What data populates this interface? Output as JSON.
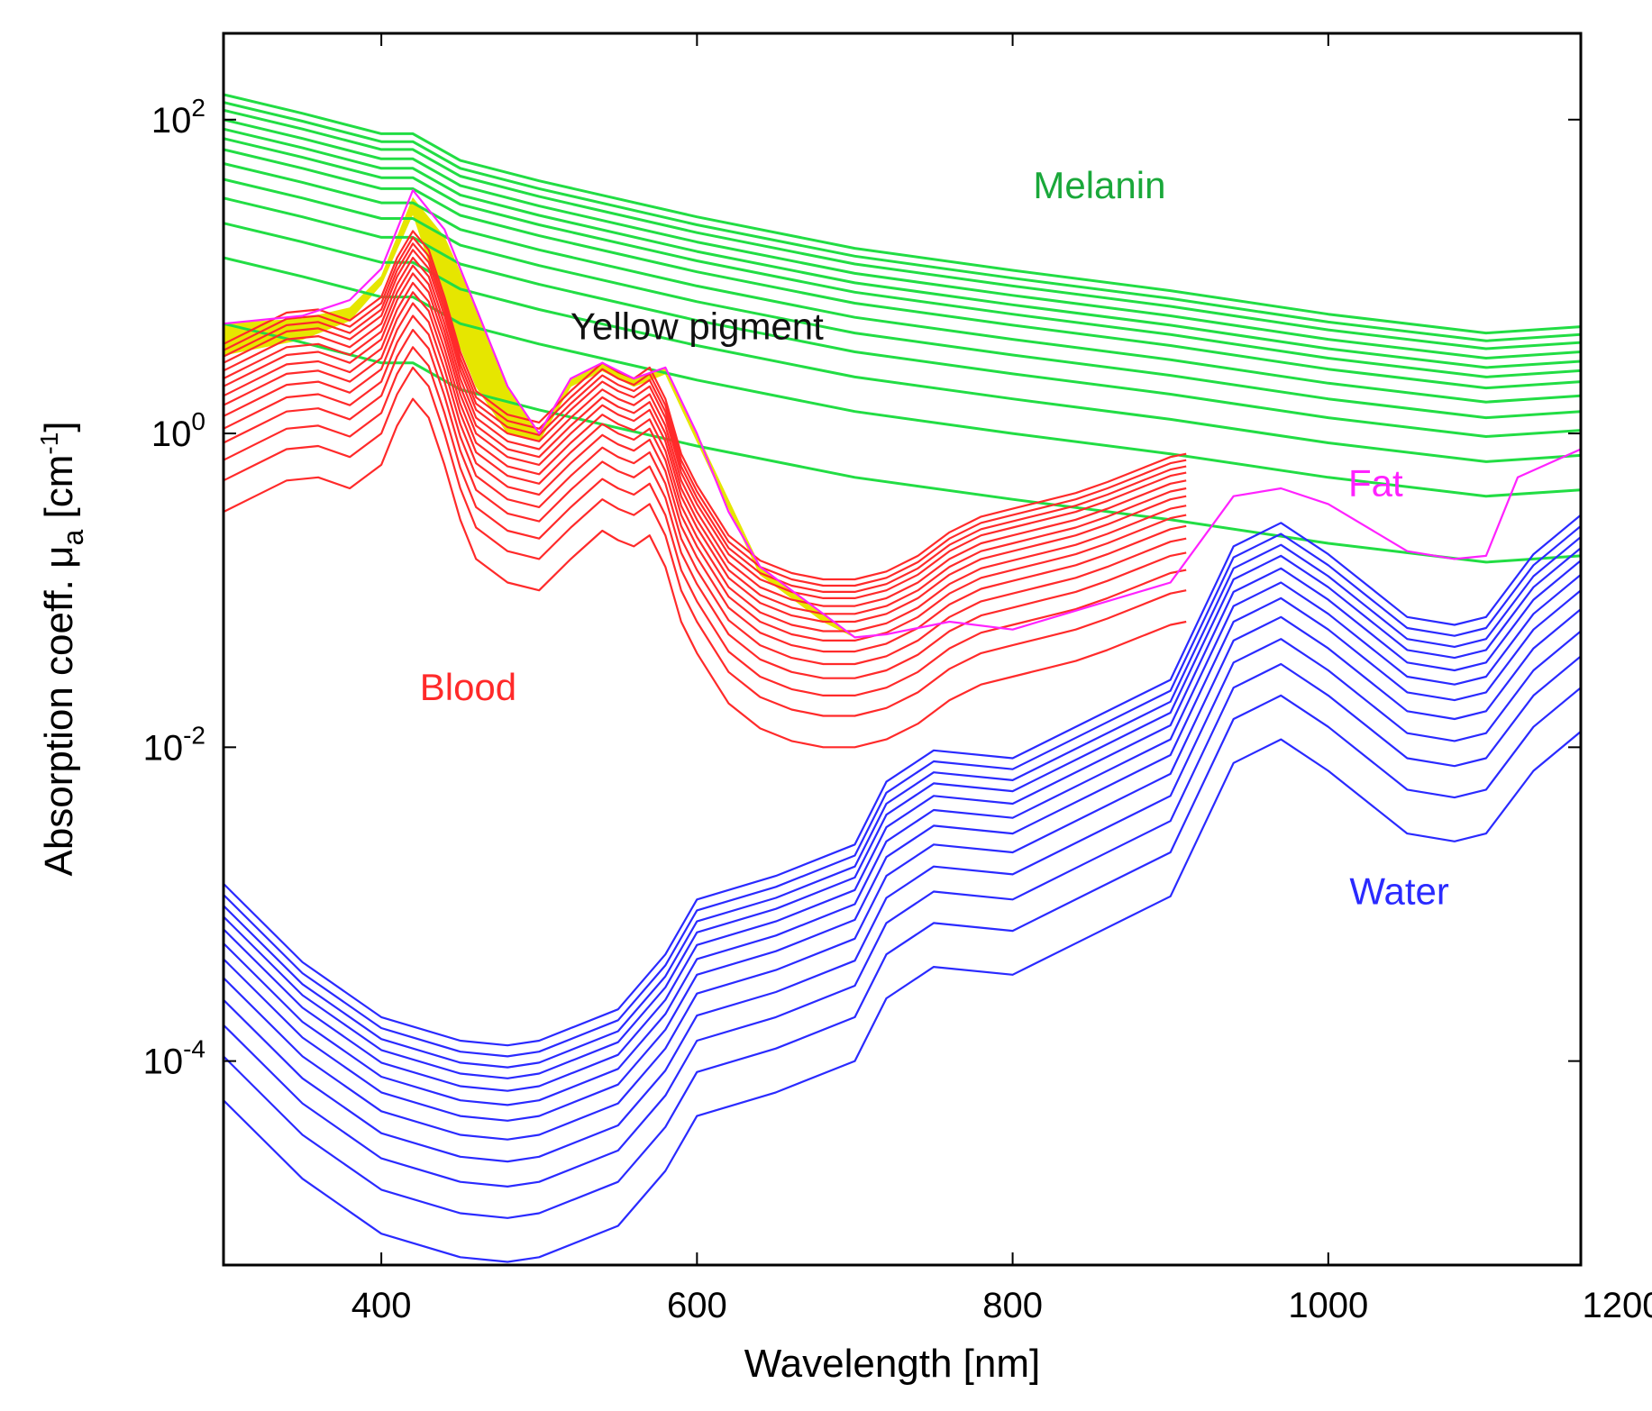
{
  "chart_data": {
    "type": "line",
    "title": "",
    "xlabel": "Wavelength [nm]",
    "ylabel": {
      "prefix": "Absorption coeff. μ",
      "subscript": "a",
      "unit_open": " [cm",
      "unit_sup": "-1",
      "unit_close": "]"
    },
    "xlim": [
      300,
      1160
    ],
    "ylim_log10": [
      -5.3,
      2.55
    ],
    "yscale": "log",
    "x_ticks": [
      400,
      600,
      800,
      1000,
      1200
    ],
    "x_tick_labels": [
      "400",
      "600",
      "800",
      "1000",
      "1200"
    ],
    "y_ticks": [
      {
        "exp": 2,
        "base": "10",
        "sup": "2"
      },
      {
        "exp": 0,
        "base": "10",
        "sup": "0"
      },
      {
        "exp": -2,
        "base": "10",
        "sup": "-2"
      },
      {
        "exp": -4,
        "base": "10",
        "sup": "-4"
      }
    ],
    "colors": {
      "melanin": "#22dd44",
      "blood": "#ff2a2a",
      "water": "#2a2aff",
      "fat": "#ff22ff",
      "yellow": "#e6e600",
      "text_melanin": "#1aa83a",
      "text_yellow": "#111111"
    },
    "annotations": [
      {
        "text": "Melanin",
        "color_key": "text_melanin",
        "x": 855,
        "log10": 1.5
      },
      {
        "text": "Yellow pigment",
        "color_key": "text_yellow",
        "x": 600,
        "log10": 0.6
      },
      {
        "text": "Fat",
        "color_key": "fat",
        "x": 1030,
        "log10": -0.4
      },
      {
        "text": "Blood",
        "color_key": "blood",
        "x": 455,
        "log10": -1.7
      },
      {
        "text": "Water",
        "color_key": "water",
        "x": 1045,
        "log10": -3.0
      }
    ],
    "series_groups": [
      {
        "name": "Melanin",
        "color_key": "melanin",
        "x": [
          300,
          350,
          400,
          420,
          450,
          500,
          600,
          700,
          800,
          900,
          1000,
          1100,
          1160
        ],
        "base_log10": [
          0.7,
          0.58,
          0.45,
          0.45,
          0.28,
          0.15,
          -0.08,
          -0.28,
          -0.42,
          -0.55,
          -0.7,
          -0.82,
          -0.78
        ],
        "offsets": [
          0,
          0.42,
          0.64,
          0.8,
          0.92,
          1.02,
          1.11,
          1.18,
          1.24,
          1.3,
          1.36,
          1.41,
          1.46
        ]
      },
      {
        "name": "Blood",
        "color_key": "blood",
        "x": [
          300,
          320,
          340,
          360,
          380,
          400,
          410,
          420,
          430,
          440,
          450,
          460,
          480,
          500,
          520,
          540,
          550,
          560,
          570,
          580,
          590,
          600,
          620,
          640,
          660,
          680,
          700,
          720,
          740,
          760,
          780,
          800,
          820,
          840,
          860,
          880,
          900,
          910
        ],
        "base_log10": [
          -0.5,
          -0.4,
          -0.3,
          -0.28,
          -0.35,
          -0.2,
          0.05,
          0.22,
          0.1,
          -0.2,
          -0.55,
          -0.8,
          -0.95,
          -1.0,
          -0.8,
          -0.62,
          -0.68,
          -0.72,
          -0.65,
          -0.85,
          -1.2,
          -1.4,
          -1.72,
          -1.88,
          -1.96,
          -2.0,
          -2.0,
          -1.95,
          -1.85,
          -1.7,
          -1.6,
          -1.55,
          -1.5,
          -1.45,
          -1.38,
          -1.3,
          -1.22,
          -1.2
        ],
        "offsets": [
          0,
          0.2,
          0.33,
          0.44,
          0.53,
          0.61,
          0.68,
          0.74,
          0.8,
          0.85,
          0.9,
          0.95,
          0.99,
          1.03,
          1.07
        ]
      },
      {
        "name": "Water",
        "color_key": "water",
        "x": [
          300,
          350,
          400,
          450,
          480,
          500,
          550,
          580,
          600,
          650,
          700,
          720,
          750,
          800,
          850,
          900,
          940,
          970,
          1000,
          1050,
          1080,
          1100,
          1130,
          1160
        ],
        "base_log10": [
          -4.25,
          -4.75,
          -5.1,
          -5.25,
          -5.28,
          -5.25,
          -5.05,
          -4.7,
          -4.35,
          -4.2,
          -4.0,
          -3.6,
          -3.4,
          -3.45,
          -3.2,
          -2.95,
          -2.1,
          -1.95,
          -2.15,
          -2.55,
          -2.6,
          -2.55,
          -2.15,
          -1.9
        ],
        "offsets": [
          0,
          0.28,
          0.48,
          0.64,
          0.78,
          0.9,
          1.0,
          1.09,
          1.17,
          1.24,
          1.31,
          1.38
        ]
      },
      {
        "name": "Fat",
        "color_key": "fat",
        "x": [
          300,
          350,
          380,
          400,
          420,
          440,
          460,
          480,
          500,
          520,
          540,
          560,
          580,
          600,
          620,
          640,
          660,
          680,
          700,
          720,
          760,
          800,
          850,
          900,
          940,
          970,
          1000,
          1050,
          1080,
          1100,
          1120,
          1160
        ],
        "base_log10": [
          0.7,
          0.75,
          0.85,
          1.05,
          1.55,
          1.3,
          0.8,
          0.3,
          0.0,
          0.35,
          0.45,
          0.35,
          0.42,
          0.0,
          -0.5,
          -0.85,
          -1.0,
          -1.15,
          -1.3,
          -1.28,
          -1.2,
          -1.25,
          -1.1,
          -0.95,
          -0.4,
          -0.35,
          -0.45,
          -0.75,
          -0.8,
          -0.78,
          -0.28,
          -0.1
        ]
      },
      {
        "name": "Yellow pigment",
        "color_key": "yellow",
        "x": [
          300,
          350,
          380,
          400,
          420,
          440,
          460,
          480,
          500,
          520,
          540,
          560,
          580,
          600,
          640,
          680,
          700
        ],
        "upper_log10": [
          0.7,
          0.73,
          0.8,
          1.0,
          1.5,
          1.25,
          0.8,
          0.3,
          0.0,
          0.35,
          0.45,
          0.35,
          0.42,
          0.0,
          -0.85,
          -1.15,
          -1.3
        ],
        "lower_log10": [
          0.5,
          0.6,
          0.72,
          0.95,
          1.4,
          0.8,
          0.3,
          0.0,
          -0.05,
          0.3,
          0.4,
          0.3,
          0.38,
          -0.05,
          -0.9,
          -1.2,
          -1.3
        ]
      }
    ]
  }
}
